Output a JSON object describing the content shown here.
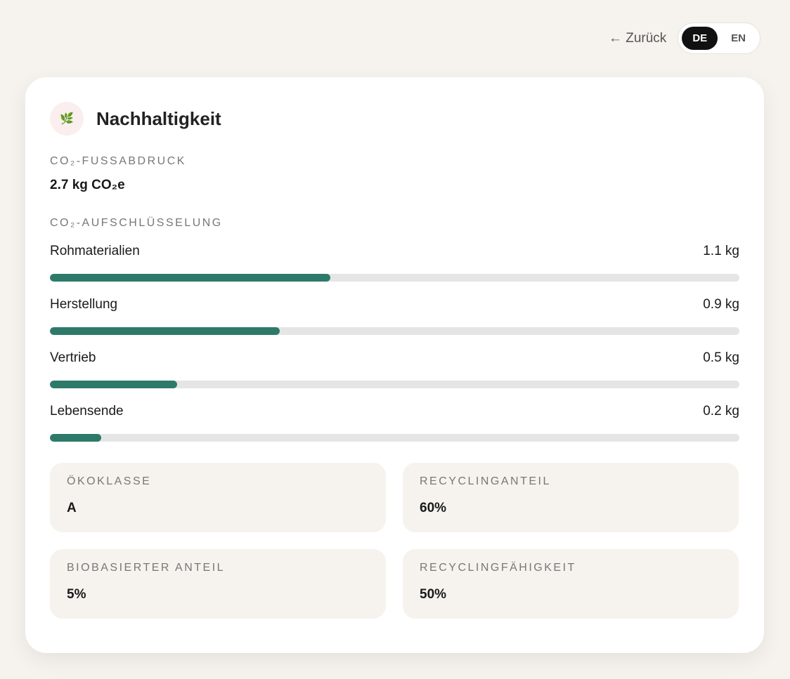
{
  "topbar": {
    "back_label": "← Zurück",
    "languages": [
      {
        "code": "DE",
        "active": true
      },
      {
        "code": "EN",
        "active": false
      }
    ]
  },
  "card": {
    "icon": "leaf-icon",
    "title": "Nachhaltigkeit",
    "footprint_label": "CO₂-Fussabdruck",
    "footprint_value": "2.7 kg CO₂e",
    "breakdown_label": "CO₂-Aufschlüsselung",
    "breakdown": [
      {
        "label": "Rohmaterialien",
        "value": "1.1 kg",
        "fraction": 0.407
      },
      {
        "label": "Herstellung",
        "value": "0.9 kg",
        "fraction": 0.333
      },
      {
        "label": "Vertrieb",
        "value": "0.5 kg",
        "fraction": 0.185
      },
      {
        "label": "Lebensende",
        "value": "0.2 kg",
        "fraction": 0.074
      }
    ],
    "tiles": [
      {
        "label": "Ökoklasse",
        "value": "A"
      },
      {
        "label": "Recyclinganteil",
        "value": "60%"
      },
      {
        "label": "Biobasierter Anteil",
        "value": "5%"
      },
      {
        "label": "Recyclingfähigkeit",
        "value": "50%"
      }
    ]
  },
  "colors": {
    "accent": "#2e7a6a",
    "track": "#e5e5e5",
    "background": "#f6f3ee"
  }
}
